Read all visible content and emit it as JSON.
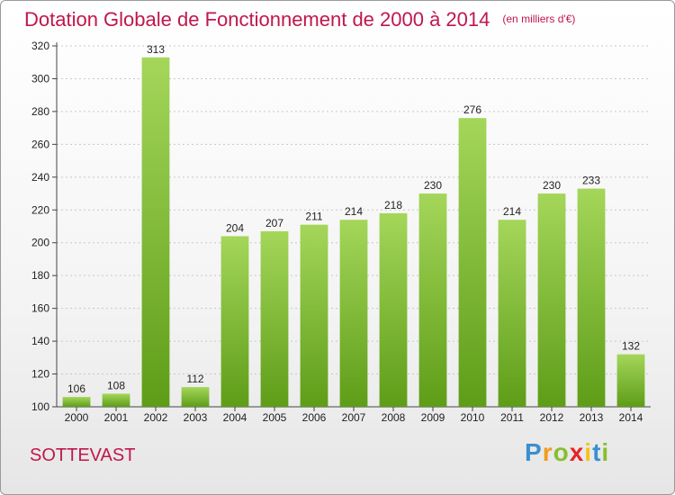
{
  "header": {
    "title": "Dotation Globale de Fonctionnement de 2000 à 2014",
    "unit": "(en milliers d'€)"
  },
  "footer": {
    "commune": "SOTTEVAST",
    "brand": [
      "P",
      "r",
      "o",
      "x",
      "i",
      "t",
      "i"
    ],
    "brand_colors": [
      "#3a8fd1",
      "#f39b1c",
      "#86bf2e",
      "#e6242b",
      "#f4c21a",
      "#3a8fd1",
      "#86bf2e"
    ]
  },
  "chart_data": {
    "type": "bar",
    "categories": [
      "2000",
      "2001",
      "2002",
      "2003",
      "2004",
      "2005",
      "2006",
      "2007",
      "2008",
      "2009",
      "2010",
      "2011",
      "2012",
      "2013",
      "2014"
    ],
    "values": [
      106,
      108,
      313,
      112,
      204,
      207,
      211,
      214,
      218,
      230,
      276,
      214,
      230,
      233,
      132
    ],
    "title": "Dotation Globale de Fonctionnement de 2000 à 2014",
    "xlabel": "",
    "ylabel": "",
    "ylim": [
      100,
      320
    ],
    "yticks": [
      100,
      120,
      140,
      160,
      180,
      200,
      220,
      240,
      260,
      280,
      300,
      320
    ],
    "grid": true,
    "bar_color_top": "#a4d65a",
    "bar_color_bottom": "#5e9d18"
  }
}
